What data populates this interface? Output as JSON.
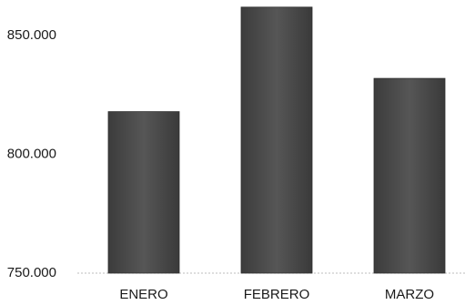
{
  "chart_data": {
    "type": "bar",
    "categories": [
      "ENERO",
      "FEBRERO",
      "MARZO"
    ],
    "values": [
      818000,
      862000,
      832000
    ],
    "ylim": [
      750000,
      865000
    ],
    "yticks": [
      750000,
      800000,
      850000
    ],
    "ytick_labels": [
      "750.000",
      "800.000",
      "850.000"
    ],
    "grid": false,
    "bar_color": "#4a4a4a",
    "baseline_color": "#bdbdbd"
  }
}
